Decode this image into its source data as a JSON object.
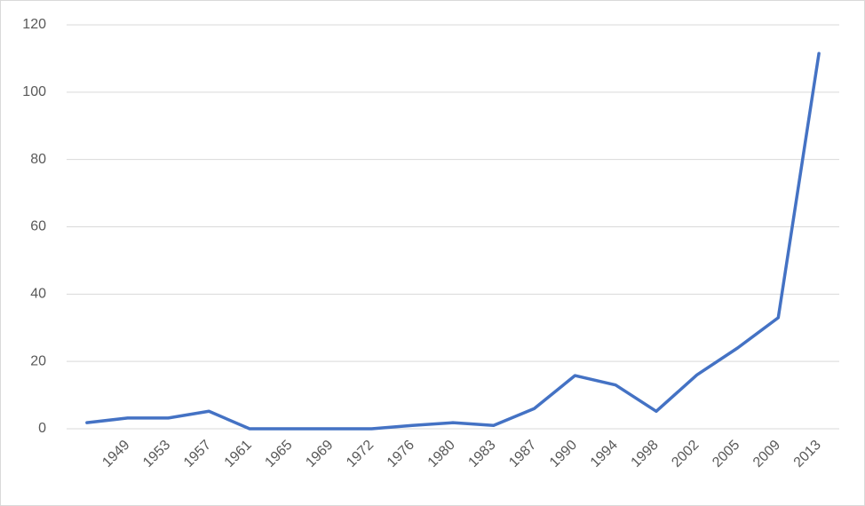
{
  "chart_data": {
    "type": "line",
    "categories": [
      null,
      "1949",
      "1953",
      "1957",
      "1961",
      "1965",
      "1969",
      "1972",
      "1976",
      "1980",
      "1983",
      "1987",
      "1990",
      "1994",
      "1998",
      "2002",
      "2005",
      "2009",
      "2013"
    ],
    "values": [
      1.8,
      3.2,
      3.2,
      5.2,
      0,
      0,
      0,
      0,
      1,
      1.8,
      1,
      6,
      15.8,
      13,
      5.2,
      16,
      24,
      33,
      111.5
    ],
    "color": "#4472c4",
    "ylim": [
      0,
      120
    ],
    "yticks": [
      0,
      20,
      40,
      60,
      80,
      100,
      120
    ],
    "grid": true
  }
}
